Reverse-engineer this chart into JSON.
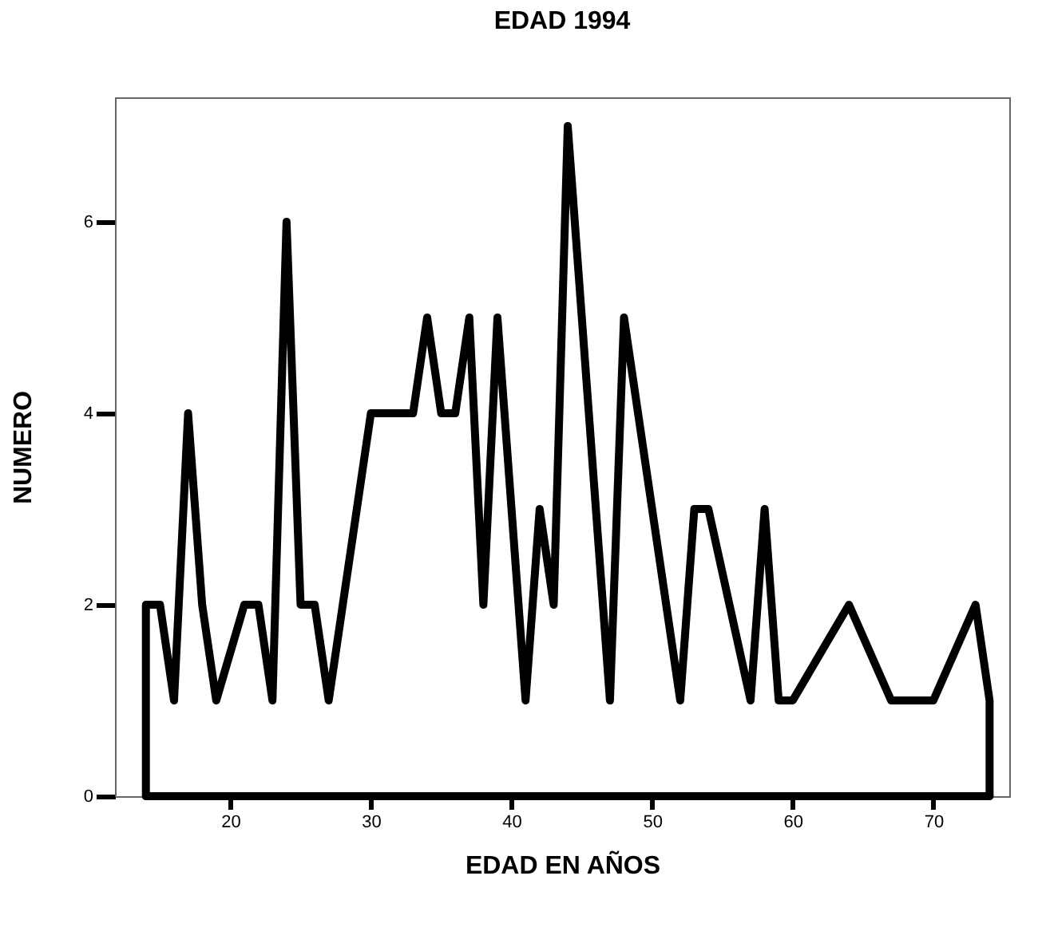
{
  "chart_data": {
    "type": "line",
    "title": "EDAD 1994",
    "xlabel": "EDAD EN AÑOS",
    "ylabel": "NUMERO",
    "x": [
      14,
      14,
      15,
      16,
      17,
      18,
      19,
      21,
      22,
      23,
      24,
      25,
      26,
      27,
      30,
      33,
      34,
      35,
      36,
      37,
      38,
      39,
      41,
      42,
      43,
      44,
      47,
      48,
      52,
      53,
      54,
      57,
      58,
      59,
      60,
      64,
      67,
      70,
      73,
      74,
      74
    ],
    "series": [
      {
        "color": "#000000",
        "values": [
          0,
          2,
          2,
          1,
          4,
          2,
          1,
          2,
          2,
          1,
          6,
          2,
          2,
          1,
          4,
          4,
          5,
          4,
          4,
          5,
          2,
          5,
          1,
          3,
          2,
          7,
          1,
          5,
          1,
          3,
          3,
          1,
          3,
          1,
          1,
          2,
          1,
          1,
          2,
          1,
          0
        ]
      },
      {
        "color": "#000000",
        "x": [
          14,
          74
        ],
        "values": [
          0,
          0
        ]
      }
    ],
    "xlim": [
      11.8,
      75.4
    ],
    "ylim": [
      0,
      7.3
    ],
    "xticks": [
      20,
      30,
      40,
      50,
      60,
      70
    ],
    "yticks": [
      0,
      2,
      4,
      6
    ],
    "grid": false,
    "marker": "none",
    "line_style": "solid"
  }
}
